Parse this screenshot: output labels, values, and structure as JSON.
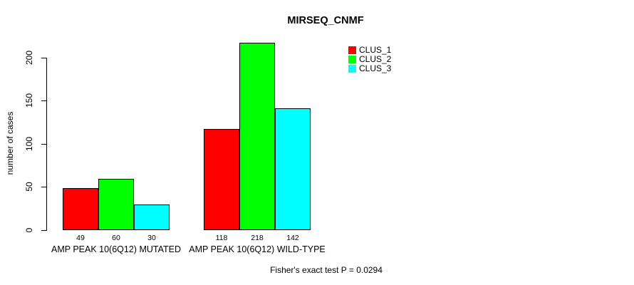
{
  "title": "MIRSEQ_CNMF",
  "annotation": "Fisher's exact test P = 0.0294",
  "legend": {
    "items": [
      {
        "label": "CLUS_1",
        "color": "#ff0000"
      },
      {
        "label": "CLUS_2",
        "color": "#00ff00"
      },
      {
        "label": "CLUS_3",
        "color": "#00ffff"
      }
    ]
  },
  "colors": {
    "clus_1": "#ff0000",
    "clus_2": "#00ff00",
    "clus_3": "#00ffff",
    "axis": "#000000",
    "background": "#ffffff"
  },
  "chart_data": {
    "type": "bar",
    "title": "MIRSEQ_CNMF",
    "xlabel": "",
    "ylabel": "number of cases",
    "categories": [
      "AMP PEAK 10(6Q12) MUTATED",
      "AMP PEAK 10(6Q12) WILD-TYPE"
    ],
    "series": [
      {
        "name": "CLUS_1",
        "color": "#ff0000",
        "values": [
          49,
          118
        ]
      },
      {
        "name": "CLUS_2",
        "color": "#00ff00",
        "values": [
          60,
          218
        ]
      },
      {
        "name": "CLUS_3",
        "color": "#00ffff",
        "values": [
          30,
          142
        ]
      }
    ],
    "bar_value_labels": [
      [
        49,
        60,
        30
      ],
      [
        118,
        218,
        142
      ]
    ],
    "yticks": [
      0,
      50,
      100,
      150,
      200
    ],
    "ylim": [
      0,
      218
    ],
    "grid": false,
    "legend_position": "top-right",
    "legend_entries": [
      "CLUS_1",
      "CLUS_2",
      "CLUS_3"
    ],
    "annotation": "Fisher's exact test P = 0.0294"
  }
}
